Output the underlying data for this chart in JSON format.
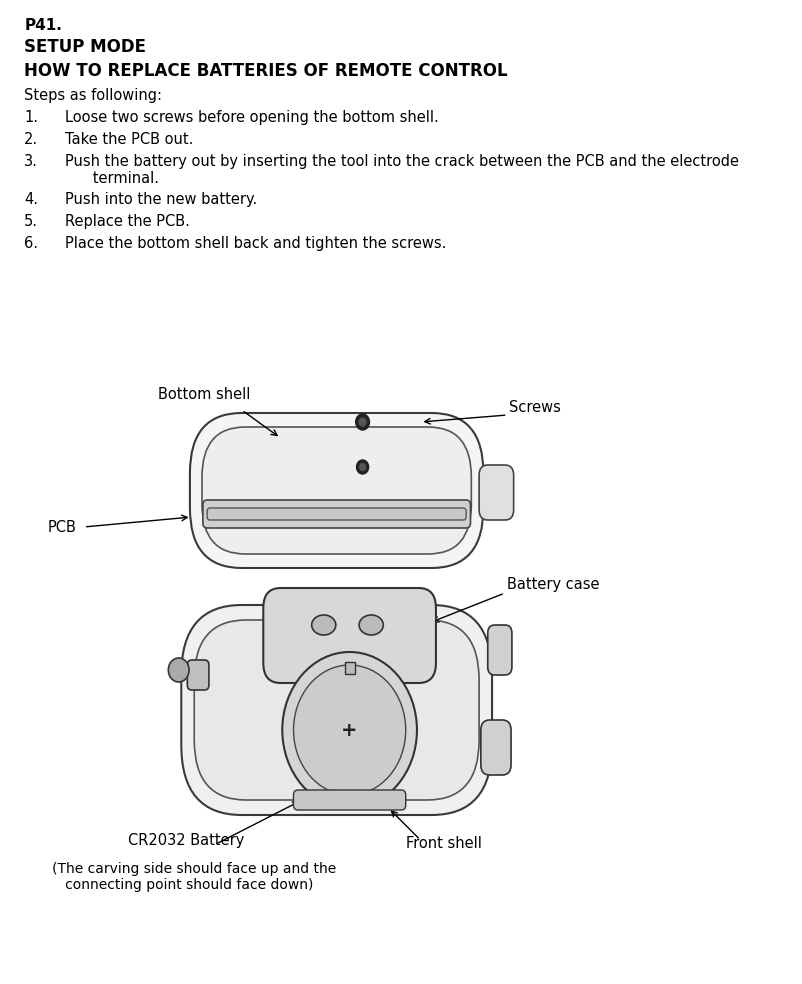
{
  "page_label": "P41.",
  "title1": "SETUP MODE",
  "title2": "HOW TO REPLACE BATTERIES OF REMOTE CONTROL",
  "intro": "Steps as following:",
  "steps": [
    "Loose two screws before opening the bottom shell.",
    "Take the PCB out.",
    "Push the battery out by inserting the tool into the crack between the PCB and the electrode\n      terminal.",
    "Push into the new battery.",
    "Replace the PCB.",
    "Place the bottom shell back and tighten the screws."
  ],
  "labels": {
    "bottom_shell": "Bottom shell",
    "screws": "Screws",
    "pcb": "PCB",
    "battery_case": "Battery case",
    "cr2032": "CR2032 Battery",
    "front_shell": "Front shell",
    "note": "(The carving side should face up and the\n   connecting point should face down)"
  },
  "bg_color": "#ffffff",
  "text_color": "#000000",
  "font_size_page": 11,
  "font_size_title1": 12,
  "font_size_title2": 12,
  "font_size_body": 10.5,
  "font_size_label": 10.5
}
